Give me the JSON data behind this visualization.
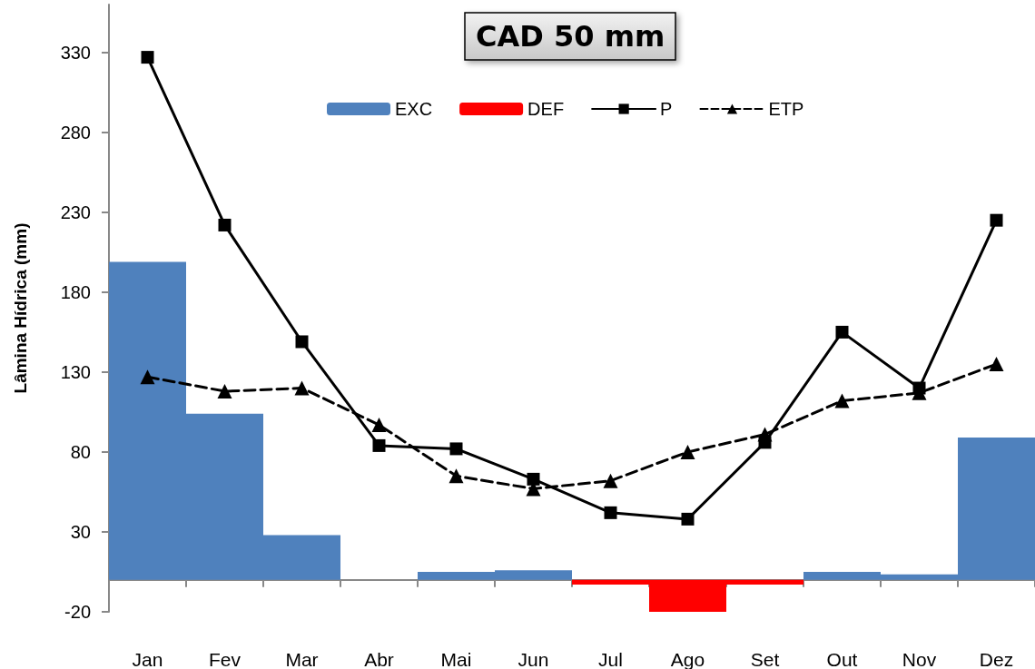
{
  "chart_data": {
    "type": "bar",
    "title": "CAD 50 mm",
    "ylabel": "Lâmina Hídrica (mm)",
    "categories": [
      "Jan",
      "Fev",
      "Mar",
      "Abr",
      "Mai",
      "Jun",
      "Jul",
      "Ago",
      "Set",
      "Out",
      "Nov",
      "Dez"
    ],
    "series": [
      {
        "name": "EXC",
        "color": "#4f81bd",
        "values": [
          199,
          104,
          28,
          0,
          5,
          6,
          0,
          0,
          0,
          5,
          3.5,
          89
        ]
      },
      {
        "name": "DEF",
        "color": "#ff0000",
        "values": [
          0,
          0,
          0,
          0,
          0,
          0,
          -3,
          -20,
          -3,
          0,
          0,
          0
        ]
      },
      {
        "name": "P",
        "type": "line",
        "color": "#000000",
        "marker": "square",
        "line_style": "solid",
        "values": [
          327,
          222,
          149,
          84,
          82,
          63,
          42,
          38,
          86,
          155,
          120,
          225
        ]
      },
      {
        "name": "ETP",
        "type": "line",
        "color": "#000000",
        "marker": "triangle",
        "line_style": "dashed",
        "values": [
          127,
          118,
          120,
          97,
          65,
          57,
          62,
          80,
          91,
          112,
          117,
          135
        ]
      }
    ],
    "ylim": [
      -20,
      360
    ],
    "yticks": [
      -20,
      30,
      80,
      130,
      180,
      230,
      280,
      330
    ],
    "grid": false,
    "legend": "top"
  }
}
